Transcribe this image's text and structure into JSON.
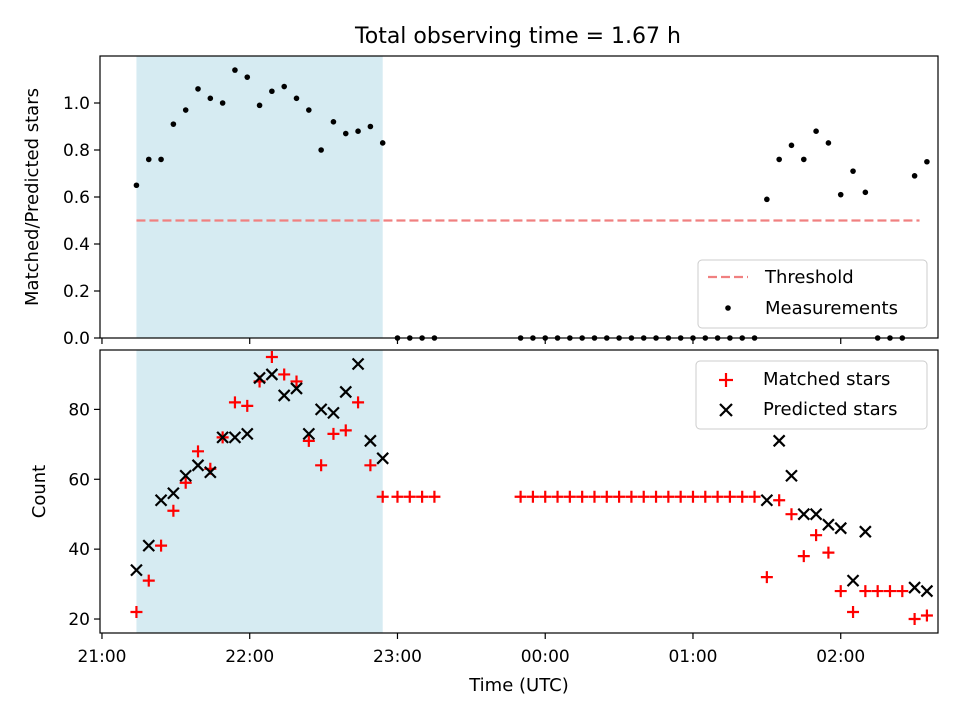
{
  "title": "Total observing time = 1.67 h",
  "chart_data": [
    {
      "type": "scatter",
      "panel": "top",
      "ylabel": "Matched/Predicted stars",
      "ylim": [
        0,
        1.2
      ],
      "yticks": [
        0.0,
        0.2,
        0.4,
        0.6,
        0.8,
        1.0
      ],
      "ytick_labels": [
        "0.0",
        "0.2",
        "0.4",
        "0.6",
        "0.8",
        "1.0"
      ],
      "xlim": [
        "21:00",
        "02:35"
      ],
      "xticks": [
        "21:00",
        "22:00",
        "23:00",
        "00:00",
        "01:00",
        "02:00"
      ],
      "shaded_interval": [
        "21:14",
        "22:54"
      ],
      "threshold": {
        "name": "Threshold",
        "value": 0.5,
        "x_range": [
          "21:14",
          "02:32"
        ]
      },
      "series": [
        {
          "name": "Measurements",
          "x": [
            "21:14",
            "21:19",
            "21:24",
            "21:29",
            "21:34",
            "21:39",
            "21:44",
            "21:49",
            "21:54",
            "21:59",
            "22:04",
            "22:09",
            "22:14",
            "22:19",
            "22:24",
            "22:29",
            "22:34",
            "22:39",
            "22:44",
            "22:49",
            "22:54",
            "23:00",
            "23:05",
            "23:10",
            "23:15",
            "23:50",
            "23:55",
            "00:00",
            "00:05",
            "00:10",
            "00:15",
            "00:20",
            "00:25",
            "00:30",
            "00:35",
            "00:40",
            "00:45",
            "00:50",
            "00:55",
            "01:00",
            "01:05",
            "01:10",
            "01:15",
            "01:20",
            "01:25",
            "01:30",
            "01:35",
            "01:40",
            "01:45",
            "01:50",
            "01:55",
            "02:00",
            "02:05",
            "02:10",
            "02:15",
            "02:20",
            "02:25",
            "02:30",
            "02:35"
          ],
          "y": [
            0.65,
            0.76,
            0.76,
            0.91,
            0.97,
            1.06,
            1.02,
            1.0,
            1.14,
            1.11,
            0.99,
            1.05,
            1.07,
            1.02,
            0.97,
            0.8,
            0.92,
            0.87,
            0.88,
            0.9,
            0.83,
            0,
            0,
            0,
            0,
            0,
            0,
            0,
            0,
            0,
            0,
            0,
            0,
            0,
            0,
            0,
            0,
            0,
            0,
            0,
            0,
            0,
            0,
            0,
            0,
            0.59,
            0.76,
            0.82,
            0.76,
            0.88,
            0.83,
            0.61,
            0.71,
            0.62,
            0,
            0,
            0,
            0.69,
            0.75
          ]
        }
      ],
      "legend": {
        "placement": "lower-right",
        "entries": [
          "Threshold",
          "Measurements"
        ]
      }
    },
    {
      "type": "scatter",
      "panel": "bottom",
      "ylabel": "Count",
      "xlabel": "Time (UTC)",
      "ylim": [
        16,
        97
      ],
      "yticks": [
        20,
        40,
        60,
        80
      ],
      "ytick_labels": [
        "20",
        "40",
        "60",
        "80"
      ],
      "xlim": [
        "21:00",
        "02:35"
      ],
      "xticks": [
        "21:00",
        "22:00",
        "23:00",
        "00:00",
        "01:00",
        "02:00"
      ],
      "xtick_labels": [
        "21:00",
        "22:00",
        "23:00",
        "00:00",
        "01:00",
        "02:00"
      ],
      "shaded_interval": [
        "21:14",
        "22:54"
      ],
      "series": [
        {
          "name": "Matched stars",
          "x": [
            "21:14",
            "21:19",
            "21:24",
            "21:29",
            "21:34",
            "21:39",
            "21:44",
            "21:49",
            "21:54",
            "21:59",
            "22:04",
            "22:09",
            "22:14",
            "22:19",
            "22:24",
            "22:29",
            "22:34",
            "22:39",
            "22:44",
            "22:49",
            "22:54",
            "23:00",
            "23:05",
            "23:10",
            "23:15",
            "23:50",
            "23:55",
            "00:00",
            "00:05",
            "00:10",
            "00:15",
            "00:20",
            "00:25",
            "00:30",
            "00:35",
            "00:40",
            "00:45",
            "00:50",
            "00:55",
            "01:00",
            "01:05",
            "01:10",
            "01:15",
            "01:20",
            "01:25",
            "01:30",
            "01:35",
            "01:40",
            "01:45",
            "01:50",
            "01:55",
            "02:00",
            "02:05",
            "02:10",
            "02:15",
            "02:20",
            "02:25",
            "02:30",
            "02:35"
          ],
          "y": [
            22,
            31,
            41,
            51,
            59,
            68,
            63,
            72,
            82,
            81,
            88,
            95,
            90,
            88,
            71,
            64,
            73,
            74,
            82,
            64,
            55,
            55,
            55,
            55,
            55,
            55,
            55,
            55,
            55,
            55,
            55,
            55,
            55,
            55,
            55,
            55,
            55,
            55,
            55,
            55,
            55,
            55,
            55,
            55,
            55,
            32,
            54,
            50,
            38,
            44,
            39,
            28,
            22,
            28,
            28,
            28,
            28,
            20,
            21
          ]
        },
        {
          "name": "Predicted stars",
          "x": [
            "21:14",
            "21:19",
            "21:24",
            "21:29",
            "21:34",
            "21:39",
            "21:44",
            "21:49",
            "21:54",
            "21:59",
            "22:04",
            "22:09",
            "22:14",
            "22:19",
            "22:24",
            "22:29",
            "22:34",
            "22:39",
            "22:44",
            "22:49",
            "22:54",
            "01:30",
            "01:35",
            "01:40",
            "01:45",
            "01:50",
            "01:55",
            "02:00",
            "02:05",
            "02:10",
            "02:30",
            "02:35"
          ],
          "y": [
            34,
            41,
            54,
            56,
            61,
            64,
            62,
            72,
            72,
            73,
            89,
            90,
            84,
            86,
            73,
            80,
            79,
            85,
            93,
            71,
            66,
            54,
            71,
            61,
            50,
            50,
            47,
            46,
            31,
            45,
            29,
            28
          ]
        }
      ],
      "legend": {
        "placement": "upper-right",
        "entries": [
          "Matched stars",
          "Predicted stars"
        ]
      }
    }
  ],
  "colors": {
    "matched": "#ff0000",
    "predicted": "#000000",
    "threshold": "#f08080",
    "measurements": "#000000",
    "shade": "#add8e6"
  }
}
